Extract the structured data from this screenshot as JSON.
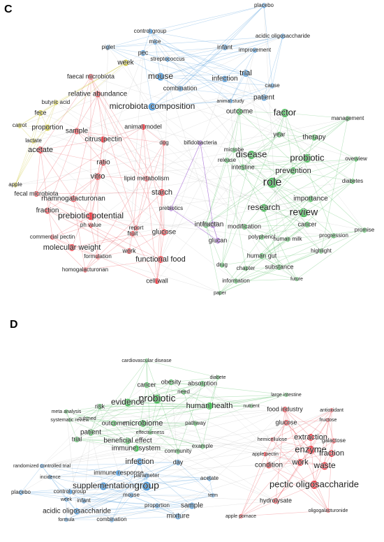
{
  "panels": [
    {
      "label": "C",
      "clusters": [
        {
          "color": "#e8333c",
          "nodes": [
            "relative abundance",
            "faecal microbiota",
            "sample",
            "citrus pectin",
            "acetate",
            "ratio",
            "vitro",
            "rhamnogalacturonan",
            "prebiotic potential",
            "fraction",
            "ph value",
            "commercial pectin",
            "molecular weight",
            "formulation",
            "homogalacturonan",
            "fruit",
            "work",
            "functional food",
            "cell wall",
            "glucose",
            "starch",
            "dog",
            "animal model",
            "fecal microbiota",
            "report",
            "lipid metabolism"
          ]
        },
        {
          "color": "#c8c020",
          "nodes": [
            "week",
            "fece",
            "proportion",
            "carrot",
            "lactate",
            "apple",
            "butyric acid"
          ]
        },
        {
          "color": "#3a8fd8",
          "nodes": [
            "placebo",
            "control group",
            "mice",
            "piglet",
            "pec",
            "streptococcus",
            "acidic oligosaccharide",
            "infant",
            "improvement",
            "mouse",
            "combination",
            "infection",
            "trial",
            "patient",
            "microbiota composition",
            "animal study",
            "cause"
          ]
        },
        {
          "color": "#39b54a",
          "nodes": [
            "outcome",
            "factor",
            "management",
            "therapy",
            "year",
            "disease",
            "probiotic",
            "intestine",
            "prevention",
            "role",
            "overview",
            "diabetes",
            "importance",
            "research",
            "review",
            "modification",
            "cancer",
            "polyphenol",
            "human milk",
            "human gut",
            "substance",
            "chapter",
            "future",
            "information",
            "paper",
            "promise",
            "progression",
            "highlight",
            "release",
            "microbe",
            "drug",
            "interest"
          ]
        },
        {
          "color": "#9b59d0",
          "nodes": [
            "bifidobacteria",
            "fructan",
            "glucan",
            "prebiotics"
          ]
        }
      ]
    },
    {
      "label": "D",
      "clusters": [
        {
          "color": "#39b54a",
          "nodes": [
            "cardiovascular disease",
            "diabete",
            "obesity",
            "cancer",
            "absorption",
            "need",
            "probiotic",
            "evidence",
            "human health",
            "large intestine",
            "nutrient",
            "risk",
            "pubmed",
            "meta analysis",
            "systematic review",
            "microbiome",
            "outcome",
            "pathway",
            "patient",
            "beneficial effect",
            "trial",
            "immune system",
            "community",
            "example",
            "effectiveness"
          ]
        },
        {
          "color": "#3a8fd8",
          "nodes": [
            "day",
            "infection",
            "immune response",
            "supplementation",
            "group",
            "parameter",
            "acetate",
            "randomized controlled trial",
            "incidence",
            "control group",
            "placebo",
            "week",
            "infant",
            "mouse",
            "acidic oligosaccharide",
            "sample",
            "mixture",
            "proportion",
            "formula",
            "combination",
            "term"
          ]
        },
        {
          "color": "#e8333c",
          "nodes": [
            "food industry",
            "glucose",
            "hemicellulose",
            "extraction",
            "enzyme",
            "apple pectin",
            "condition",
            "work",
            "waste",
            "fraction",
            "galactose",
            "fructose",
            "antioxidant",
            "pectic oligosaccharide",
            "hydrolysate",
            "apple pomace",
            "oligogalacturonide"
          ]
        }
      ]
    }
  ]
}
